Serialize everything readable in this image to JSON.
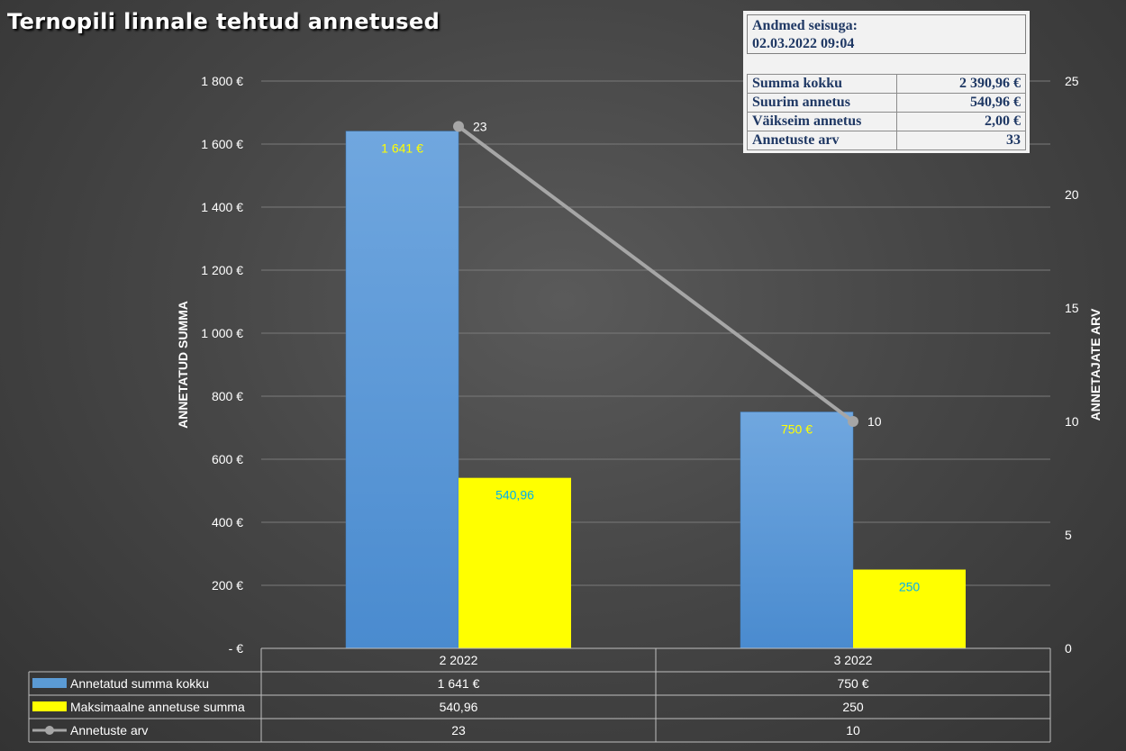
{
  "title": "Ternopili linnale tehtud annetused",
  "info_box": {
    "header_line1": "Andmed seisuga:",
    "header_line2": "02.03.2022 09:04",
    "rows": [
      {
        "label": "Summa kokku",
        "value": "2 390,96 €"
      },
      {
        "label": "Suurim annetus",
        "value": "540,96 €"
      },
      {
        "label": "Väikseim annetus",
        "value": "2,00 €"
      },
      {
        "label": "Annetuste arv",
        "value": "33"
      }
    ]
  },
  "colors": {
    "bar_total": "#5b9bd5",
    "bar_total_top": "#6fa8e0",
    "bar_max": "#ffff00",
    "line": "#a6a6a6",
    "label_total": "#ffff00",
    "label_max": "#00b0f0",
    "grid": "#7a7a7a"
  },
  "chart_data": {
    "type": "bar",
    "categories": [
      "2 2022",
      "3 2022"
    ],
    "series": [
      {
        "name": "Annetatud summa kokku",
        "type": "bar",
        "axis": "left",
        "values": [
          1641,
          750
        ],
        "labels": [
          "1 641 €",
          "750 €"
        ]
      },
      {
        "name": "Maksimaalne annetuse summa",
        "type": "bar",
        "axis": "left",
        "values": [
          540.96,
          250
        ],
        "labels": [
          "540,96",
          "250"
        ]
      },
      {
        "name": "Annetuste arv",
        "type": "line",
        "axis": "right",
        "values": [
          23,
          10
        ],
        "labels": [
          "23",
          "10"
        ]
      }
    ],
    "ylabel": "ANNETATUD SUMMA",
    "y2label": "ANNETAJATE ARV",
    "ylim": [
      0,
      1800
    ],
    "y2lim": [
      0,
      25
    ],
    "yticks": [
      0,
      200,
      400,
      600,
      800,
      1000,
      1200,
      1400,
      1600,
      1800
    ],
    "ytick_labels": [
      " -  €",
      "200 €",
      "400 €",
      "600 €",
      "800 €",
      "1 000 €",
      "1 200 €",
      "1 400 €",
      "1 600 €",
      "1 800 €"
    ],
    "y2ticks": [
      0,
      5,
      10,
      15,
      20,
      25
    ],
    "y2tick_labels": [
      "0",
      "5",
      "10",
      "15",
      "20",
      "25"
    ],
    "grid": true,
    "legend": "data-table-bottom"
  }
}
